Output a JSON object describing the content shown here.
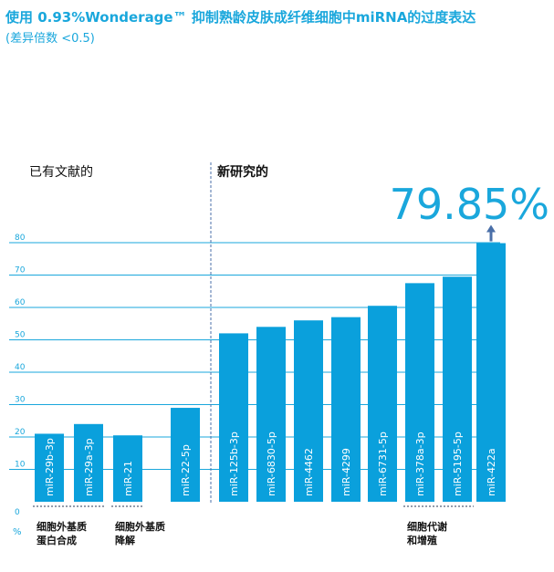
{
  "title": "使用 0.93%Wonderage™ 抑制熟龄皮肤成纤维细胞中miRNA的过度表达",
  "subtitle": "(差异倍数 <0.5)",
  "chart_data": {
    "type": "bar",
    "ylabel": "%",
    "ylim": [
      0,
      80
    ],
    "yticks": [
      0,
      10,
      20,
      30,
      40,
      50,
      60,
      70,
      80
    ],
    "grid": true,
    "categories": [
      "miR-29b-3p",
      "miR-29a-3p",
      "miR-21",
      "miR-22-5p",
      "miR-125b-3p",
      "miR-6830-5p",
      "miR-4462",
      "miR-4299",
      "miR-6731-5p",
      "miR-378a-3p",
      "miR-5195-5p",
      "miR-422a"
    ],
    "values": [
      21,
      24,
      20.5,
      29,
      52,
      54,
      56,
      57,
      60.5,
      67.5,
      69.5,
      79.85
    ],
    "sections": [
      "已有文献的",
      "新研究的"
    ],
    "groups": [
      {
        "label": [
          "细胞外基质",
          "蛋白合成"
        ],
        "from": 0,
        "to": 1
      },
      {
        "label": [
          "细胞外基质",
          "降解"
        ],
        "from": 2,
        "to": 2
      },
      {
        "label": [
          "细胞代谢",
          "和增殖"
        ],
        "from": 9,
        "to": 10
      }
    ],
    "highlight": {
      "index": 11,
      "label": "79.85%"
    },
    "colors": {
      "bar": "#0aa0dc",
      "accent": "#1aa7dc",
      "grid": "#1aa7dc",
      "arrow": "#4a6fa8"
    }
  }
}
